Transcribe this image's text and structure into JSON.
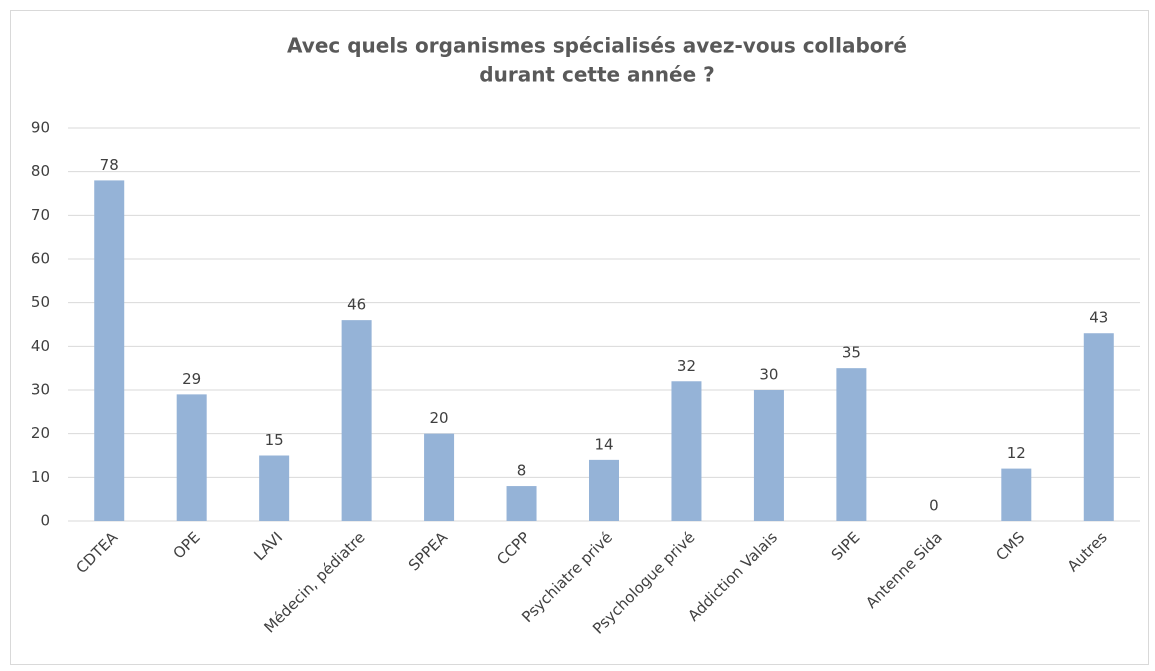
{
  "chart_data": {
    "type": "bar",
    "title": [
      "Avec quels organismes spécialisés avez-vous collaboré",
      "durant cette année ?"
    ],
    "categories": [
      "CDTEA",
      "OPE",
      "LAVI",
      "Médecin, pédiatre",
      "SPPEA",
      "CCPP",
      "Psychiatre privé",
      "Psychologue privé",
      "Addiction Valais",
      "SIPE",
      "Antenne Sida",
      "CMS",
      "Autres"
    ],
    "values": [
      78,
      29,
      15,
      46,
      20,
      8,
      14,
      32,
      30,
      35,
      0,
      12,
      43
    ],
    "color": "#95b3d7",
    "ylim": [
      0,
      90
    ],
    "yticks": [
      0,
      10,
      20,
      30,
      40,
      50,
      60,
      70,
      80,
      90
    ],
    "grid": true
  }
}
